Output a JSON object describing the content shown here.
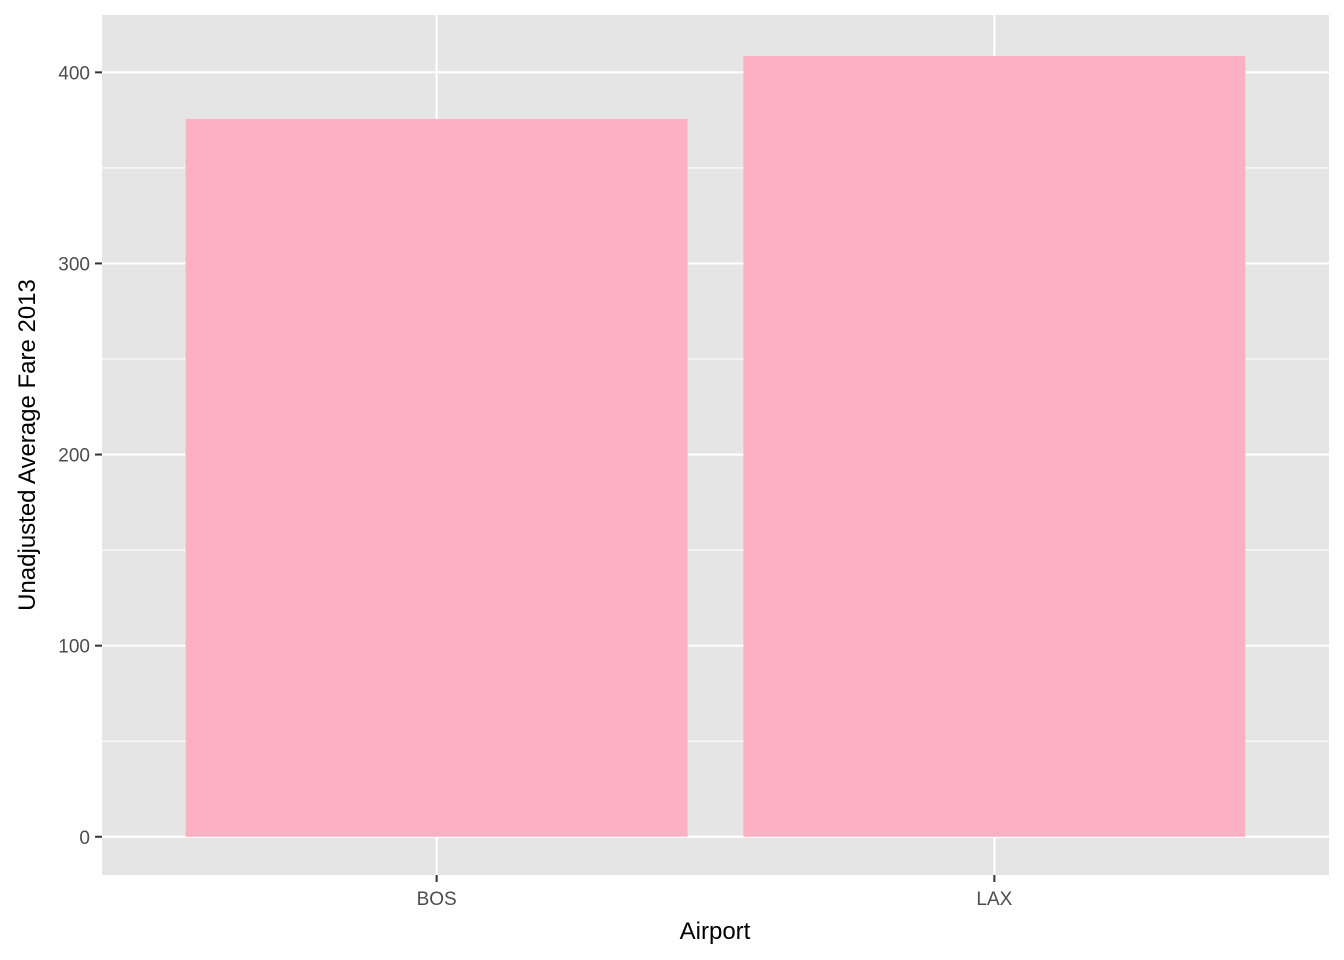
{
  "chart_data": {
    "type": "bar",
    "title": "",
    "xlabel": "Airport",
    "ylabel": "Unadjusted Average Fare 2013",
    "categories": [
      "BOS",
      "LAX"
    ],
    "values": [
      375.6,
      408.6
    ],
    "ylim": [
      -20,
      430
    ],
    "yticks": [
      0,
      100,
      200,
      300,
      400
    ],
    "grid": true,
    "colors": {
      "bar": "#FCB0C1",
      "panel": "#E5E5E5",
      "grid": "#FFFFFF",
      "tick_text": "#4D4D4D",
      "tick_mark": "#333333"
    }
  }
}
